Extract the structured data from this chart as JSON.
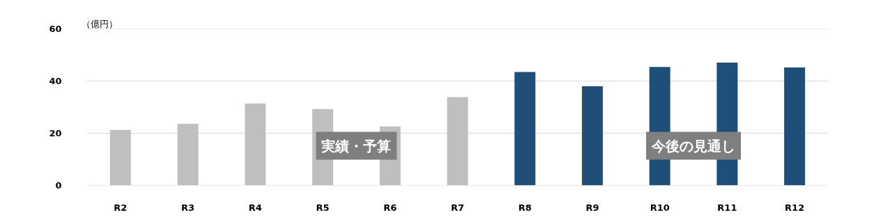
{
  "chart_data": {
    "type": "bar",
    "ylabel": "（億円）",
    "categories": [
      "R2",
      "R3",
      "R4",
      "R5",
      "R6",
      "R7",
      "R8",
      "R9",
      "R10",
      "R11",
      "R12"
    ],
    "values": [
      21.3,
      23.6,
      31.4,
      29.3,
      22.6,
      33.9,
      43.5,
      38.0,
      45.4,
      47.1,
      45.2
    ],
    "colors": [
      "#bfbfbf",
      "#bfbfbf",
      "#bfbfbf",
      "#bfbfbf",
      "#bfbfbf",
      "#bfbfbf",
      "#1f4e79",
      "#1f4e79",
      "#1f4e79",
      "#1f4e79",
      "#1f4e79"
    ],
    "ylim": [
      0,
      60
    ],
    "yticks": [
      0,
      20,
      40,
      60
    ],
    "grid": "y",
    "annotations": [
      "実績・予算",
      "今後の見通し"
    ]
  }
}
